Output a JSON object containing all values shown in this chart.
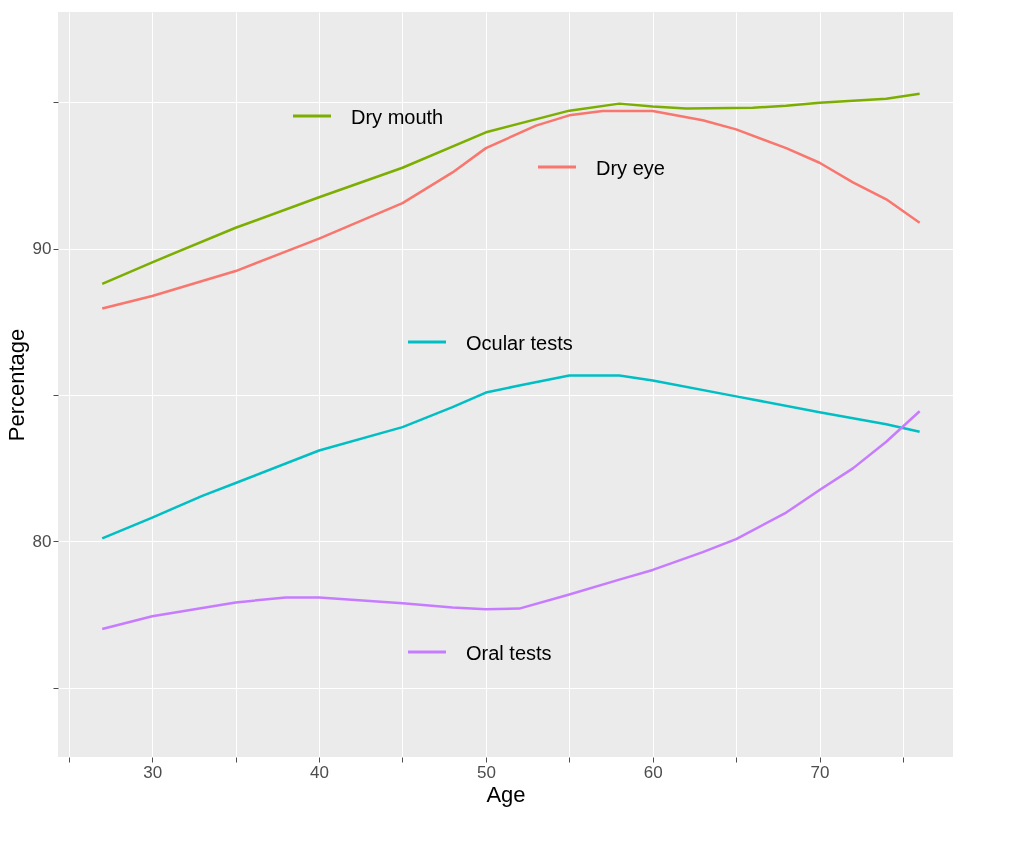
{
  "chart_data": {
    "type": "line",
    "xlabel": "Age",
    "ylabel": "Percentage",
    "xlim": [
      24.35,
      78
    ],
    "ylim": [
      72.63,
      98.08
    ],
    "xticks": [
      {
        "value": 25,
        "label": null
      },
      30,
      {
        "value": 35,
        "label": null
      },
      40,
      {
        "value": 45,
        "label": null
      },
      50,
      {
        "value": 55,
        "label": null
      },
      60,
      {
        "value": 65,
        "label": null
      },
      70,
      {
        "value": 75,
        "label": null
      }
    ],
    "yticks": [
      {
        "value": 75,
        "label": null
      },
      80,
      {
        "value": 85,
        "label": null
      },
      90,
      {
        "value": 95,
        "label": null
      }
    ],
    "grid": true,
    "legend": "top",
    "line_style": "solid",
    "marker": "none",
    "series": [
      {
        "name": "Dry mouth",
        "color": "#7cae00",
        "x": [
          27,
          30,
          35,
          40,
          45,
          50,
          55,
          58,
          60,
          62,
          66,
          68,
          70,
          74,
          76
        ],
        "values": [
          88.79,
          89.53,
          90.71,
          91.75,
          92.76,
          93.97,
          94.71,
          94.95,
          94.85,
          94.78,
          94.81,
          94.88,
          94.98,
          95.12,
          95.29
        ]
      },
      {
        "name": "Dry eye",
        "color": "#f8766d",
        "x": [
          27,
          30,
          35,
          40,
          45,
          48,
          50,
          53,
          55,
          57,
          60,
          63,
          65,
          68,
          70,
          72,
          74,
          76
        ],
        "values": [
          87.95,
          88.38,
          89.23,
          90.34,
          91.55,
          92.6,
          93.43,
          94.2,
          94.55,
          94.7,
          94.7,
          94.38,
          94.07,
          93.43,
          92.93,
          92.26,
          91.68,
          90.88
        ]
      },
      {
        "name": "Ocular tests",
        "color": "#00bfc4",
        "x": [
          27,
          30,
          33,
          35,
          40,
          45,
          48,
          50,
          52,
          55,
          58,
          60,
          65,
          70,
          74,
          76
        ],
        "values": [
          80.1,
          80.81,
          81.55,
          81.99,
          83.1,
          83.9,
          84.58,
          85.08,
          85.32,
          85.66,
          85.66,
          85.49,
          84.95,
          84.41,
          84.0,
          83.74
        ]
      },
      {
        "name": "Oral tests",
        "color": "#c77cff",
        "x": [
          27,
          30,
          35,
          38,
          40,
          45,
          48,
          50,
          52,
          55,
          58,
          60,
          63,
          65,
          68,
          70,
          72,
          74,
          76
        ],
        "values": [
          77.0,
          77.44,
          77.91,
          78.08,
          78.08,
          77.88,
          77.74,
          77.68,
          77.7,
          78.18,
          78.69,
          79.02,
          79.63,
          80.07,
          80.98,
          81.75,
          82.49,
          83.4,
          84.44
        ]
      }
    ]
  }
}
